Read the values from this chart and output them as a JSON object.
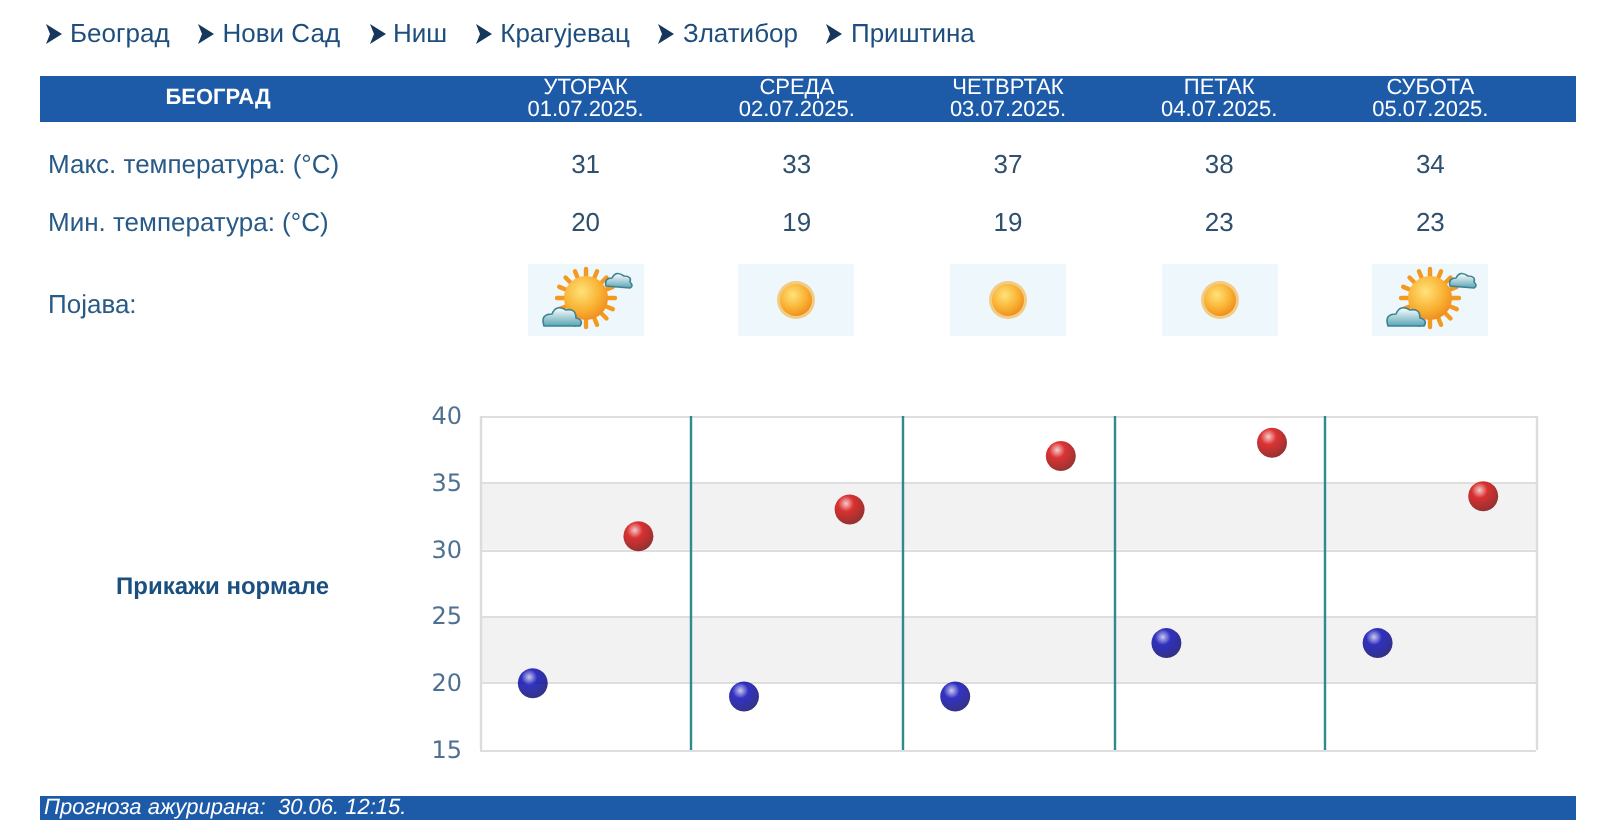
{
  "chart_data": {
    "type": "scatter",
    "title": "БЕОГРАД",
    "categories": [
      null,
      null,
      null,
      null,
      null
    ],
    "series": [
      {
        "color": "#d40000",
        "values": [
          31,
          33,
          37,
          38,
          34
        ]
      },
      {
        "color": "#0000b4",
        "values": [
          20,
          19,
          19,
          23,
          23
        ]
      }
    ],
    "ylim": [
      15,
      40
    ],
    "yticks": [
      15,
      20,
      25,
      30,
      35,
      40
    ],
    "grid": true,
    "marker": "circle",
    "data_labels": true,
    "tick_labels": "y",
    "annotations": [
      "Београд",
      "Нови Сад",
      "Ниш",
      "Крагујевац",
      "Златибор",
      "Приштина",
      "УТОРАК\n01.07.2025.",
      "СРЕДА\n02.07.2025.",
      "ЧЕТВРТАК\n03.07.2025.",
      "ПЕТАК\n04.07.2025.",
      "СУБОТА\n05.07.2025.",
      "Макс. температура: (°C)",
      "Мин. температура: (°C)",
      "Појава:",
      "Прикажи нормале",
      "Прогноза ажурирана:  30.06. 12:15."
    ]
  }
}
